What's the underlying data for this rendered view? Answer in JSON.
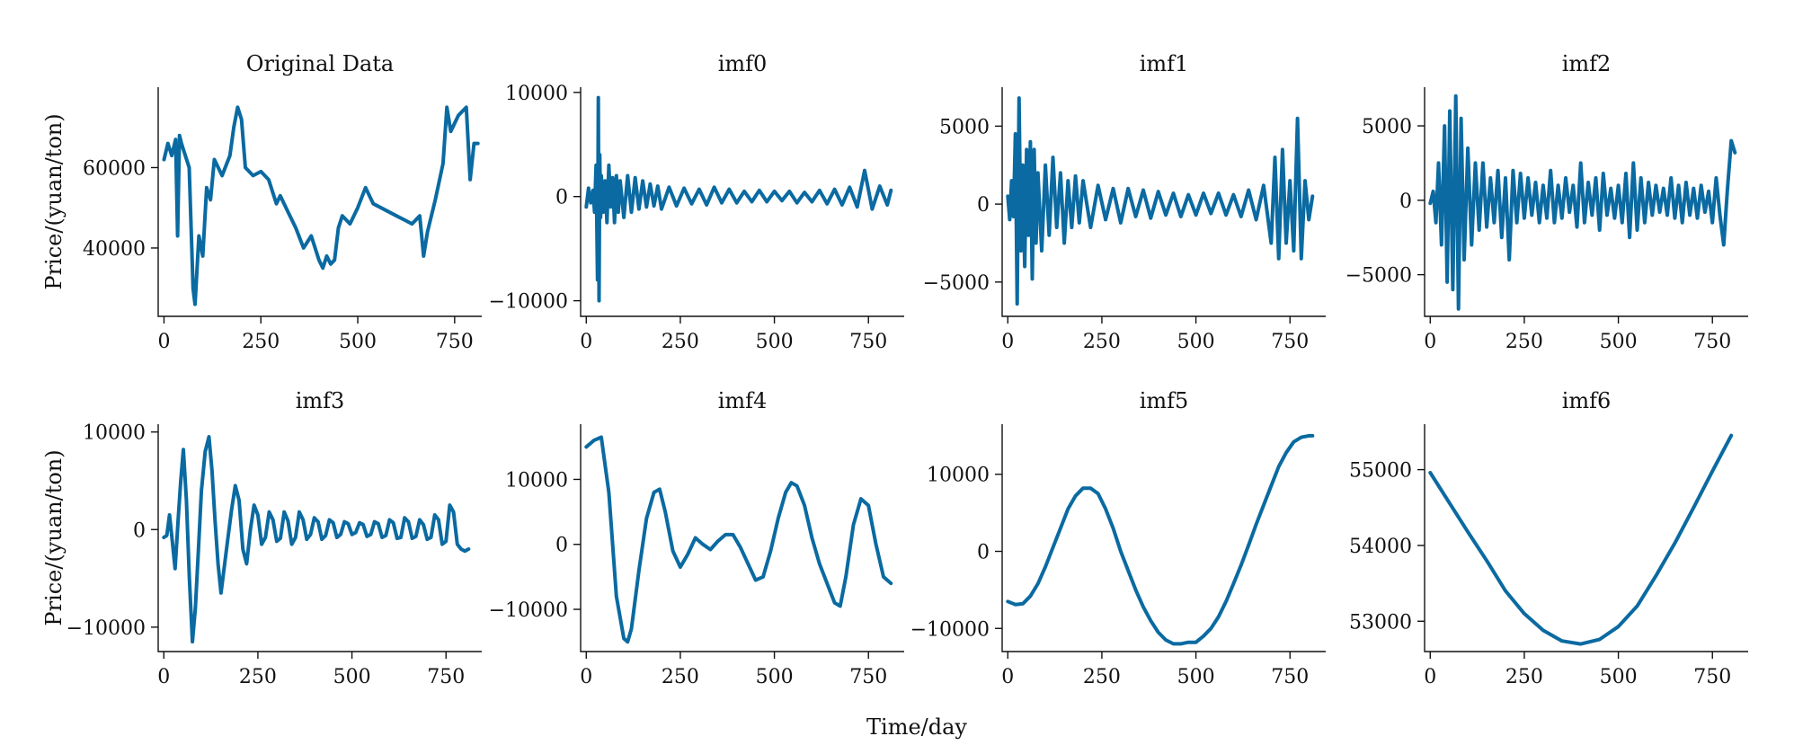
{
  "figure": {
    "xlabel": "Time/day",
    "ylabel": "Price/(yuan/ton)",
    "line_color": "#0a6aa1"
  },
  "chart_data": [
    {
      "type": "line",
      "title": "Original Data",
      "xlim": [
        -15,
        820
      ],
      "ylim": [
        23000,
        80000
      ],
      "xticks": [
        0,
        250,
        500,
        750
      ],
      "yticks": [
        40000,
        60000
      ],
      "ylabel": "Price/(yuan/ton)",
      "x": [
        0,
        10,
        20,
        30,
        35,
        40,
        45,
        55,
        65,
        75,
        80,
        90,
        100,
        110,
        120,
        130,
        150,
        170,
        180,
        190,
        200,
        210,
        230,
        250,
        270,
        290,
        300,
        320,
        340,
        360,
        380,
        400,
        410,
        420,
        430,
        440,
        450,
        460,
        470,
        480,
        500,
        520,
        540,
        560,
        580,
        600,
        620,
        640,
        660,
        670,
        680,
        700,
        720,
        730,
        740,
        760,
        780,
        790,
        800,
        810
      ],
      "y": [
        62000,
        66000,
        63000,
        67000,
        43000,
        68000,
        66000,
        63000,
        60000,
        30000,
        26000,
        43000,
        38000,
        55000,
        52000,
        62000,
        58000,
        63000,
        70000,
        75000,
        72000,
        60000,
        58000,
        59000,
        57000,
        51000,
        53000,
        49000,
        45000,
        40000,
        43000,
        37000,
        35000,
        38000,
        36000,
        37000,
        45000,
        48000,
        47000,
        46000,
        50000,
        55000,
        51000,
        50000,
        49000,
        48000,
        47000,
        46000,
        48000,
        38000,
        44000,
        52000,
        61000,
        75000,
        69000,
        73000,
        75000,
        57000,
        66000,
        66000
      ]
    },
    {
      "type": "line",
      "title": "imf0",
      "xlim": [
        -15,
        845
      ],
      "ylim": [
        -11500,
        10500
      ],
      "xticks": [
        0,
        250,
        500,
        750
      ],
      "yticks": [
        -10000,
        0,
        10000
      ],
      "x": [
        0,
        6,
        12,
        18,
        22,
        26,
        30,
        32,
        34,
        36,
        38,
        40,
        45,
        50,
        55,
        60,
        65,
        70,
        75,
        80,
        85,
        90,
        100,
        110,
        120,
        130,
        140,
        150,
        160,
        170,
        180,
        190,
        200,
        220,
        240,
        260,
        280,
        300,
        320,
        340,
        360,
        380,
        400,
        420,
        440,
        460,
        480,
        500,
        520,
        540,
        560,
        580,
        600,
        620,
        640,
        660,
        680,
        700,
        720,
        740,
        760,
        780,
        800,
        810
      ],
      "y": [
        -1000,
        800,
        -600,
        600,
        -1500,
        3000,
        -8000,
        9500,
        -10000,
        4000,
        -2000,
        2000,
        -1500,
        1500,
        -2500,
        3000,
        -1000,
        1800,
        -2500,
        2000,
        -1500,
        1500,
        -2000,
        2000,
        -1500,
        1800,
        -1200,
        1500,
        -1000,
        1200,
        -900,
        1000,
        -1200,
        900,
        -900,
        800,
        -700,
        700,
        -800,
        900,
        -600,
        700,
        -600,
        500,
        -500,
        600,
        -500,
        500,
        -400,
        500,
        -600,
        400,
        -500,
        600,
        -700,
        700,
        -800,
        900,
        -1000,
        2500,
        -1200,
        1000,
        -800,
        600
      ]
    },
    {
      "type": "line",
      "title": "imf1",
      "xlim": [
        -15,
        845
      ],
      "ylim": [
        -7200,
        7500
      ],
      "xticks": [
        0,
        250,
        500,
        750
      ],
      "yticks": [
        -5000,
        0,
        5000
      ],
      "x": [
        0,
        5,
        10,
        15,
        20,
        25,
        30,
        35,
        40,
        45,
        50,
        55,
        60,
        65,
        70,
        75,
        80,
        90,
        100,
        110,
        120,
        130,
        140,
        150,
        160,
        170,
        180,
        190,
        200,
        220,
        240,
        260,
        280,
        300,
        320,
        340,
        360,
        380,
        400,
        420,
        440,
        460,
        480,
        500,
        520,
        540,
        560,
        580,
        600,
        620,
        640,
        660,
        680,
        700,
        710,
        720,
        730,
        740,
        750,
        760,
        770,
        780,
        790,
        800,
        810
      ],
      "y": [
        500,
        -1000,
        1500,
        -800,
        4500,
        -6400,
        6800,
        -3000,
        2500,
        -4000,
        3500,
        -2000,
        4000,
        -4800,
        3500,
        -2500,
        2000,
        -3000,
        2500,
        -2000,
        3000,
        -1500,
        2000,
        -2500,
        1500,
        -1500,
        1800,
        -1200,
        1500,
        -1500,
        1200,
        -1000,
        1000,
        -1200,
        1000,
        -800,
        900,
        -900,
        800,
        -700,
        700,
        -800,
        600,
        -700,
        700,
        -600,
        700,
        -700,
        600,
        -800,
        900,
        -1000,
        1200,
        -2500,
        3000,
        -3500,
        3500,
        -2500,
        1500,
        -3000,
        5500,
        -3500,
        1500,
        -1000,
        500
      ]
    },
    {
      "type": "line",
      "title": "imf2",
      "xlim": [
        -15,
        845
      ],
      "ylim": [
        -7800,
        7600
      ],
      "xticks": [
        0,
        250,
        500,
        750
      ],
      "yticks": [
        -5000,
        0,
        5000
      ],
      "x": [
        0,
        8,
        15,
        22,
        30,
        38,
        45,
        52,
        60,
        68,
        75,
        82,
        90,
        100,
        110,
        120,
        130,
        140,
        150,
        160,
        170,
        180,
        190,
        200,
        210,
        220,
        230,
        240,
        250,
        260,
        270,
        280,
        290,
        300,
        310,
        320,
        330,
        340,
        350,
        360,
        370,
        380,
        390,
        400,
        410,
        420,
        430,
        440,
        450,
        460,
        470,
        480,
        490,
        500,
        510,
        520,
        530,
        540,
        550,
        560,
        570,
        580,
        590,
        600,
        610,
        620,
        630,
        640,
        650,
        660,
        670,
        680,
        690,
        700,
        710,
        720,
        730,
        740,
        750,
        760,
        770,
        780,
        790,
        800,
        810
      ],
      "y": [
        -200,
        600,
        -1500,
        2500,
        -3000,
        5000,
        -5500,
        6000,
        -6000,
        7000,
        -7300,
        5500,
        -4000,
        3500,
        -3000,
        2500,
        -2000,
        2500,
        -1800,
        1500,
        -1500,
        2000,
        -2500,
        1500,
        -4000,
        2000,
        -1500,
        1800,
        -1200,
        1500,
        -1000,
        1200,
        -1500,
        1000,
        -1200,
        2000,
        -1500,
        1000,
        -1200,
        1500,
        -800,
        1000,
        -1800,
        2500,
        -1500,
        1200,
        -1000,
        1500,
        -2000,
        1800,
        -1000,
        800,
        -1200,
        1000,
        -1500,
        1800,
        -2500,
        2500,
        -2000,
        1500,
        -1500,
        1200,
        -1000,
        1000,
        -800,
        800,
        -1000,
        1500,
        -1200,
        1000,
        -1500,
        1200,
        -1000,
        800,
        -1200,
        1000,
        -800,
        600,
        -1500,
        1500,
        -1000,
        -3000,
        800,
        4000,
        3200
      ]
    },
    {
      "type": "line",
      "title": "imf3",
      "xlim": [
        -15,
        845
      ],
      "ylim": [
        -12500,
        10800
      ],
      "xticks": [
        0,
        250,
        500,
        750
      ],
      "yticks": [
        -10000,
        0,
        10000
      ],
      "ylabel": "Price/(yuan/ton)",
      "x": [
        0,
        8,
        15,
        22,
        30,
        38,
        45,
        52,
        60,
        68,
        76,
        84,
        92,
        100,
        110,
        120,
        128,
        136,
        144,
        152,
        160,
        170,
        180,
        190,
        200,
        210,
        220,
        230,
        240,
        250,
        260,
        270,
        280,
        290,
        300,
        310,
        320,
        330,
        340,
        350,
        360,
        370,
        380,
        390,
        400,
        410,
        420,
        430,
        440,
        450,
        460,
        470,
        480,
        490,
        500,
        510,
        520,
        530,
        540,
        550,
        560,
        570,
        580,
        590,
        600,
        610,
        620,
        630,
        640,
        650,
        660,
        670,
        680,
        690,
        700,
        710,
        720,
        730,
        740,
        750,
        760,
        770,
        780,
        790,
        800,
        810
      ],
      "y": [
        -800,
        -600,
        1500,
        -1000,
        -4000,
        1000,
        5000,
        8200,
        3000,
        -5000,
        -11500,
        -8000,
        -2000,
        4000,
        8000,
        9500,
        6000,
        1000,
        -3500,
        -6500,
        -4000,
        -1000,
        2000,
        4500,
        3000,
        -2000,
        -3500,
        0,
        2500,
        1500,
        -1500,
        -800,
        1800,
        1000,
        -1200,
        -900,
        1800,
        900,
        -1500,
        -800,
        1800,
        1000,
        -1000,
        -500,
        1200,
        800,
        -1000,
        -600,
        1000,
        700,
        -800,
        -500,
        800,
        600,
        -500,
        -300,
        700,
        500,
        -700,
        -500,
        800,
        600,
        -800,
        -600,
        1000,
        700,
        -900,
        -800,
        1200,
        800,
        -900,
        -700,
        1000,
        500,
        -1000,
        -800,
        1500,
        1000,
        -1500,
        -1200,
        2500,
        1800,
        -1500,
        -2000,
        -2200,
        -2000
      ]
    },
    {
      "type": "line",
      "title": "imf4",
      "xlim": [
        -15,
        845
      ],
      "ylim": [
        -16500,
        18500
      ],
      "xticks": [
        0,
        250,
        500,
        750
      ],
      "yticks": [
        -10000,
        0,
        10000
      ],
      "x": [
        0,
        20,
        40,
        60,
        80,
        100,
        110,
        120,
        140,
        160,
        180,
        195,
        210,
        230,
        250,
        270,
        290,
        310,
        330,
        350,
        370,
        390,
        410,
        430,
        450,
        470,
        490,
        510,
        530,
        545,
        560,
        580,
        600,
        620,
        640,
        660,
        675,
        690,
        710,
        730,
        750,
        770,
        790,
        810
      ],
      "y": [
        15000,
        16000,
        16500,
        8000,
        -8000,
        -14500,
        -15000,
        -13000,
        -4000,
        4000,
        8000,
        8500,
        5000,
        -1000,
        -3500,
        -1500,
        1000,
        0,
        -800,
        500,
        1500,
        1500,
        -500,
        -3000,
        -5500,
        -5000,
        -1000,
        4000,
        8000,
        9500,
        9000,
        6000,
        1000,
        -3000,
        -6000,
        -9000,
        -9500,
        -5000,
        3000,
        7000,
        6000,
        0,
        -5000,
        -6000
      ]
    },
    {
      "type": "line",
      "title": "imf5",
      "xlim": [
        -15,
        845
      ],
      "ylim": [
        -13000,
        16500
      ],
      "xticks": [
        0,
        250,
        500,
        750
      ],
      "yticks": [
        -10000,
        0,
        10000
      ],
      "x": [
        0,
        20,
        40,
        60,
        80,
        100,
        120,
        140,
        160,
        180,
        200,
        220,
        240,
        260,
        280,
        300,
        320,
        340,
        360,
        380,
        400,
        420,
        440,
        460,
        480,
        500,
        520,
        540,
        560,
        580,
        600,
        620,
        640,
        660,
        680,
        700,
        720,
        740,
        760,
        780,
        800,
        810
      ],
      "y": [
        -6500,
        -6900,
        -6800,
        -5800,
        -4200,
        -2000,
        500,
        3000,
        5500,
        7200,
        8200,
        8200,
        7500,
        5500,
        3000,
        0,
        -2500,
        -5000,
        -7200,
        -9000,
        -10500,
        -11500,
        -12000,
        -12000,
        -11800,
        -11800,
        -11000,
        -10000,
        -8500,
        -6500,
        -4200,
        -1800,
        800,
        3500,
        6000,
        8500,
        11000,
        12800,
        14200,
        14800,
        15000,
        15000
      ]
    },
    {
      "type": "line",
      "title": "imf6",
      "xlim": [
        -15,
        845
      ],
      "ylim": [
        52600,
        55600
      ],
      "xticks": [
        0,
        250,
        500,
        750
      ],
      "yticks": [
        53000,
        54000,
        55000
      ],
      "x": [
        0,
        50,
        100,
        150,
        200,
        250,
        300,
        350,
        400,
        450,
        500,
        550,
        600,
        650,
        700,
        750,
        800
      ],
      "y": [
        54960,
        54570,
        54180,
        53800,
        53400,
        53100,
        52880,
        52740,
        52700,
        52760,
        52930,
        53200,
        53600,
        54030,
        54500,
        54980,
        55450
      ]
    }
  ]
}
